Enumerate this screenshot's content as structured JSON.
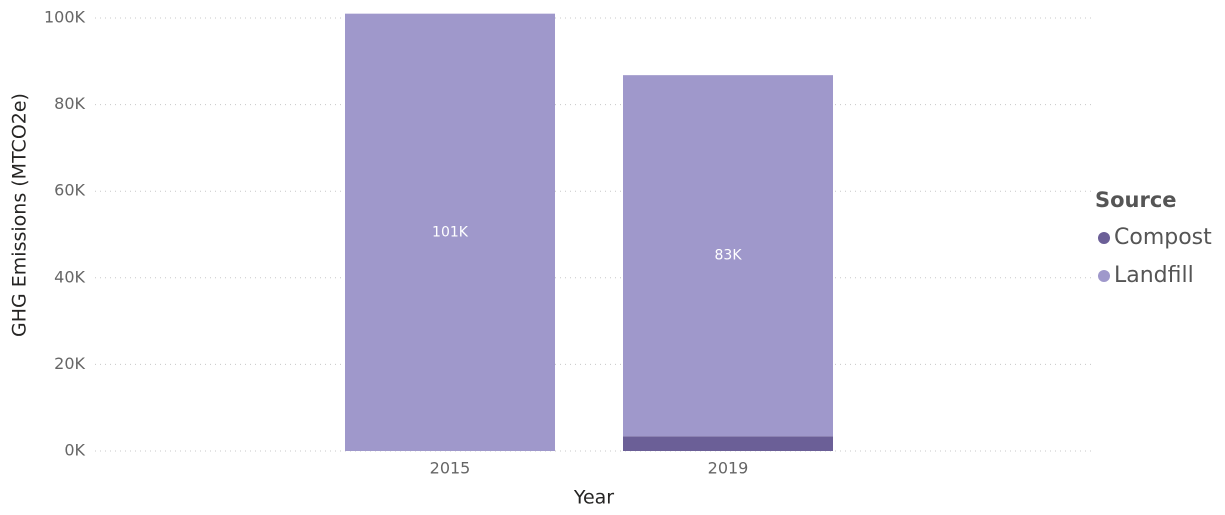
{
  "chart_data": {
    "type": "stacked_bar",
    "categories": [
      "2015",
      "2019"
    ],
    "series": [
      {
        "name": "Compost",
        "color": "#6b5f97",
        "values": [
          null,
          3400
        ]
      },
      {
        "name": "Landfill",
        "color": "#9f98cb",
        "values": [
          101000,
          83400
        ],
        "value_labels": [
          "101K",
          "83K"
        ]
      }
    ],
    "ylim": [
      0,
      100000
    ],
    "yticks": [
      {
        "value": 0,
        "label": "0K"
      },
      {
        "value": 20000,
        "label": "20K"
      },
      {
        "value": 40000,
        "label": "40K"
      },
      {
        "value": 60000,
        "label": "60K"
      },
      {
        "value": 80000,
        "label": "80K"
      },
      {
        "value": 100000,
        "label": "100K"
      }
    ],
    "grid": true,
    "x_label": "Year",
    "y_label": "GHG Emissions (MTCO2e)",
    "legend_title": "Source"
  }
}
